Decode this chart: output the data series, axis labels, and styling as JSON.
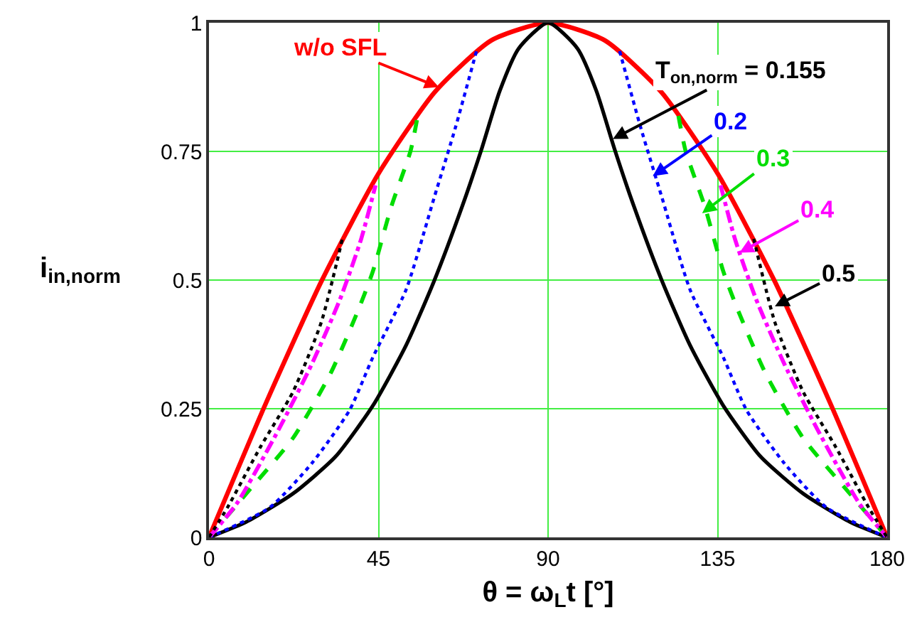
{
  "chart_data": {
    "type": "line",
    "xlabel": "θ = ω$_{L}$t [°]",
    "ylabel": "i$_{in,norm}$",
    "xlim": [
      0,
      180
    ],
    "xticks": [
      0,
      45,
      90,
      135,
      180
    ],
    "ylim": [
      0,
      1
    ],
    "yticks": [
      0,
      0.25,
      0.5,
      0.75,
      1
    ],
    "grid": true,
    "legend": false,
    "marker": "none",
    "series": [
      {
        "color": "#ff0000",
        "line_style": "solid",
        "x": [
          0,
          15,
          30,
          45,
          60,
          75,
          90,
          105,
          120,
          135,
          150,
          165,
          180
        ],
        "values": [
          0,
          0.259,
          0.5,
          0.707,
          0.866,
          0.966,
          1,
          0.966,
          0.866,
          0.707,
          0.5,
          0.259,
          0
        ]
      },
      {
        "color": "#000000",
        "line_style": "solid",
        "x": [
          0,
          9.9,
          22.3,
          33.6,
          43.5,
          52.3,
          59.8,
          67.2,
          72.2,
          77.2,
          82.2,
          90,
          97.8,
          102.8,
          107.8,
          112.8,
          120.2,
          127.7,
          136.5,
          146.4,
          157.7,
          170.1,
          180
        ],
        "values": [
          0,
          0.03,
          0.085,
          0.157,
          0.256,
          0.373,
          0.499,
          0.643,
          0.751,
          0.868,
          0.95,
          1,
          0.95,
          0.868,
          0.751,
          0.643,
          0.499,
          0.373,
          0.256,
          0.157,
          0.085,
          0.03,
          0
        ]
      },
      {
        "color": "#0000ff",
        "line_style": "dotted",
        "x": [
          0,
          16.1,
          27.3,
          37.3,
          43.5,
          52.3,
          59.8,
          65.4,
          71,
          90,
          109,
          114.6,
          120.2,
          127.7,
          136.5,
          142.7,
          152.7,
          163.9,
          180
        ],
        "values": [
          0,
          0.058,
          0.144,
          0.247,
          0.35,
          0.481,
          0.661,
          0.796,
          0.945,
          null,
          0.945,
          0.796,
          0.661,
          0.481,
          0.35,
          0.247,
          0.144,
          0.058,
          0
        ]
      },
      {
        "color": "#00dd00",
        "line_style": "dashed",
        "x": [
          0,
          9.9,
          22.3,
          32.3,
          39.8,
          43.5,
          48.4,
          53.5,
          55.4,
          90,
          124.6,
          126.5,
          131.6,
          136.5,
          140.2,
          147.7,
          157.7,
          170.1,
          180
        ],
        "values": [
          0,
          0.085,
          0.193,
          0.319,
          0.445,
          0.517,
          0.643,
          0.751,
          0.819,
          null,
          0.819,
          0.751,
          0.643,
          0.517,
          0.445,
          0.319,
          0.193,
          0.085,
          0
        ]
      },
      {
        "color": "#ff00ff",
        "line_style": "dashdot",
        "x": [
          0,
          7.4,
          18.6,
          27.3,
          34.8,
          40.4,
          44.2,
          90,
          135.8,
          139.6,
          145.2,
          152.7,
          161.4,
          172.6,
          180
        ],
        "values": [
          0,
          0.066,
          0.211,
          0.337,
          0.463,
          0.58,
          0.684,
          null,
          0.684,
          0.58,
          0.463,
          0.337,
          0.211,
          0.066,
          0
        ]
      },
      {
        "color": "#000000",
        "line_style": "dotted",
        "x": [
          0,
          4.9,
          13.6,
          22.3,
          29.8,
          35.4,
          90,
          144.6,
          150.2,
          157.7,
          166.4,
          175.1,
          180
        ],
        "values": [
          0,
          0.058,
          0.175,
          0.283,
          0.418,
          0.58,
          null,
          0.58,
          0.418,
          0.283,
          0.175,
          0.058,
          0
        ]
      }
    ],
    "annotations": [
      {
        "text": "w/o SFL",
        "x": 61,
        "y": 0.875
      },
      {
        "text": "T$_{on,norm}$ = 0.155",
        "x": 107.2,
        "y": 0.774
      },
      {
        "text": "0.2",
        "x": 117.8,
        "y": 0.702
      },
      {
        "text": "0.3",
        "x": 130.9,
        "y": 0.63
      },
      {
        "text": "0.4",
        "x": 140.8,
        "y": 0.553
      },
      {
        "text": "0.5",
        "x": 150.2,
        "y": 0.449
      }
    ]
  }
}
